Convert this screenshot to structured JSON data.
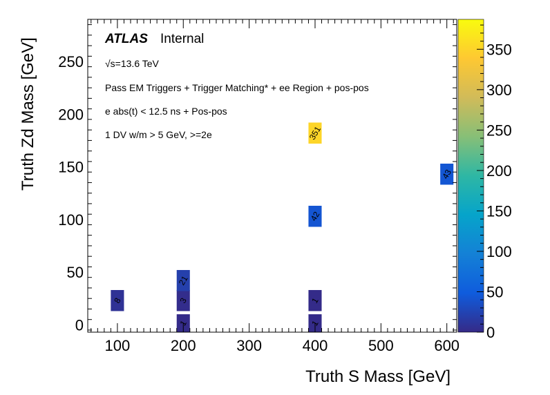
{
  "chart_data": {
    "type": "heatmap",
    "xlabel": "Truth S Mass [GeV]",
    "ylabel": "Truth Zd Mass [GeV]",
    "xlim": [
      55,
      615
    ],
    "ylim": [
      -7,
      290
    ],
    "x_ticks": [
      100,
      200,
      300,
      400,
      500,
      600
    ],
    "y_ticks": [
      0,
      50,
      100,
      150,
      200,
      250
    ],
    "colorbar": {
      "min": 0,
      "max": 387,
      "ticks": [
        0,
        50,
        100,
        150,
        200,
        250,
        300,
        350
      ]
    },
    "cell_width": 20,
    "cell_height": 20,
    "cells": [
      {
        "x": 100,
        "y": 23,
        "value": 8,
        "label": "8"
      },
      {
        "x": 200,
        "y": 0,
        "value": 1,
        "label": "1"
      },
      {
        "x": 200,
        "y": 23,
        "value": 3,
        "label": "3"
      },
      {
        "x": 200,
        "y": 42,
        "value": 21,
        "label": "21"
      },
      {
        "x": 400,
        "y": 0,
        "value": 1,
        "label": "1"
      },
      {
        "x": 400,
        "y": 23,
        "value": 1,
        "label": "1"
      },
      {
        "x": 400,
        "y": 103,
        "value": 42,
        "label": "42"
      },
      {
        "x": 400,
        "y": 182,
        "value": 351,
        "label": "351"
      },
      {
        "x": 600,
        "y": 143,
        "value": 43,
        "label": "43"
      }
    ],
    "annotations": {
      "atlas": "ATLAS",
      "internal": "Internal",
      "energy": "√s=13.6 TeV",
      "lines": [
        "Pass EM Triggers + Trigger Matching* + ee Region + pos-pos",
        "e abs(t) < 12.5 ns + Pos-pos",
        "1 DV w/m > 5 GeV, >=2e"
      ]
    }
  }
}
